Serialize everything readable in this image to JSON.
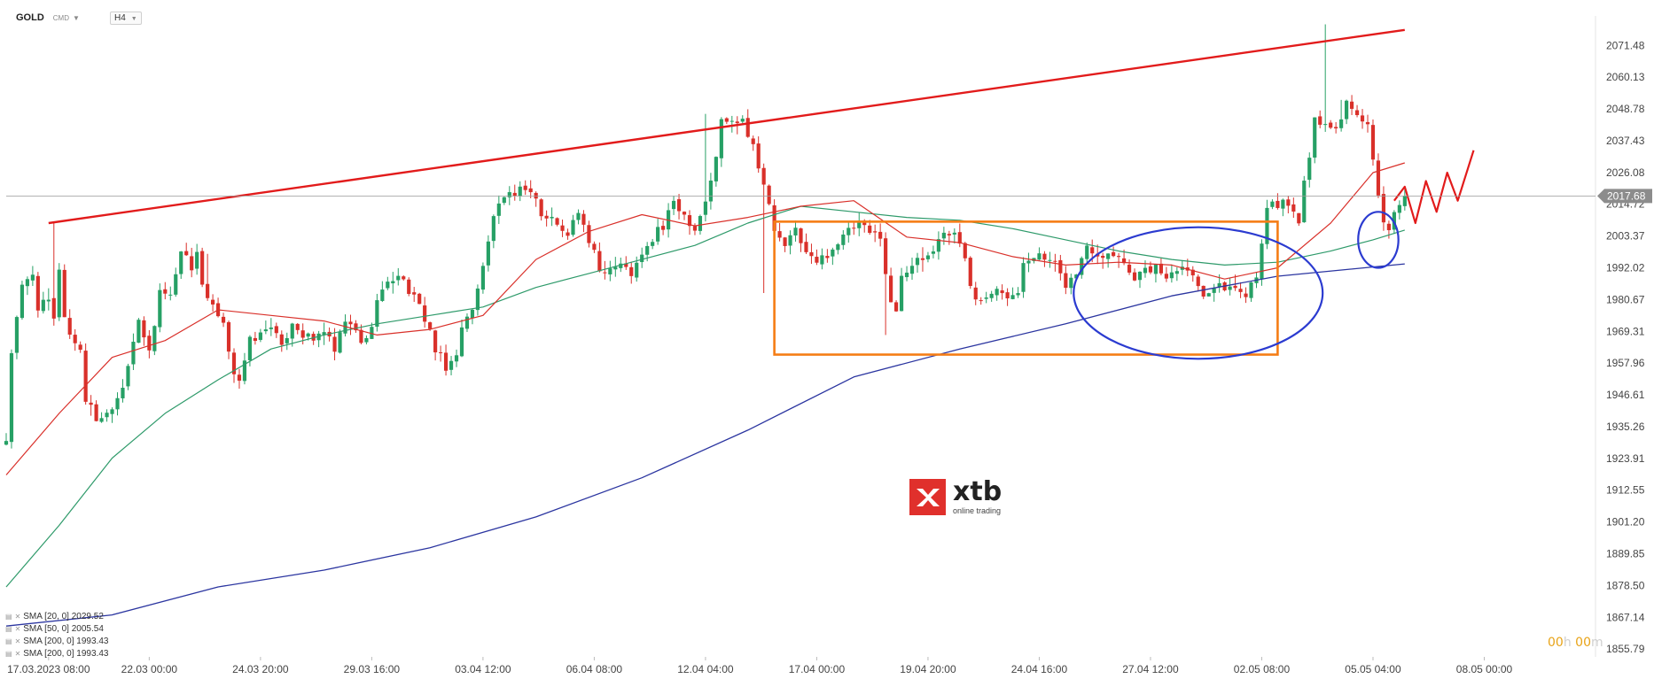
{
  "header": {
    "symbol": "GOLD",
    "type": "CMD",
    "timeframe": "H4"
  },
  "indicators": [
    {
      "label": "SMA [20, 0] 2029.52",
      "color": "#d9302a"
    },
    {
      "label": "SMA [50, 0] 2005.54",
      "color": "#2e9a6a"
    },
    {
      "label": "SMA [200, 0] 1993.43",
      "color": "#2b35a0"
    },
    {
      "label": "SMA [200, 0] 1993.43",
      "color": "#2b35a0"
    }
  ],
  "timer": {
    "hours": "00",
    "h": "h",
    "minutes": "00",
    "m": "m"
  },
  "logo": {
    "word": "xtb",
    "sub": "online trading"
  },
  "colors": {
    "up": "#26a065",
    "down": "#d9302a",
    "trendline": "#e21b1b",
    "range_box": "#f57d15",
    "ellipse": "#2b3bd0",
    "sma20": "#d9302a",
    "sma50": "#2e9a6a",
    "sma200": "#2b35a0",
    "price_tag": "#8c8c8c"
  },
  "chart_data": {
    "type": "candlestick",
    "instrument": "GOLD",
    "timeframe": "H4",
    "ylim": [
      1853.0,
      2082.0
    ],
    "xlim": [
      0,
      300
    ],
    "y_ticks": [
      "2071.48",
      "2060.13",
      "2048.78",
      "2037.43",
      "2026.08",
      "2014.72",
      "2003.37",
      "1992.02",
      "1980.67",
      "1969.31",
      "1957.96",
      "1946.61",
      "1935.26",
      "1923.91",
      "1912.55",
      "1901.20",
      "1889.85",
      "1878.50",
      "1867.14",
      "1855.79"
    ],
    "x_ticks": [
      {
        "label": "17.03.2023   08:00",
        "bar": 8
      },
      {
        "label": "22.03  00:00",
        "bar": 27
      },
      {
        "label": "24.03  20:00",
        "bar": 48
      },
      {
        "label": "29.03  16:00",
        "bar": 69
      },
      {
        "label": "03.04  12:00",
        "bar": 90
      },
      {
        "label": "06.04  08:00",
        "bar": 111
      },
      {
        "label": "12.04  04:00",
        "bar": 132
      },
      {
        "label": "17.04  00:00",
        "bar": 153
      },
      {
        "label": "19.04  20:00",
        "bar": 174
      },
      {
        "label": "24.04  16:00",
        "bar": 195
      },
      {
        "label": "27.04  12:00",
        "bar": 216
      },
      {
        "label": "02.05  08:00",
        "bar": 237
      },
      {
        "label": "05.05  04:00",
        "bar": 258
      },
      {
        "label": "08.05  00:00",
        "bar": 279
      }
    ],
    "last_price": "2017.68",
    "candles": [],
    "ohlc_columns": [
      "open",
      "high",
      "low",
      "close"
    ],
    "anchors": [
      [
        0,
        1930.5
      ],
      [
        1,
        1962
      ],
      [
        3,
        1985
      ],
      [
        5,
        1990
      ],
      [
        6,
        1978
      ],
      [
        8,
        1980
      ],
      [
        9,
        1973
      ],
      [
        10,
        1992
      ],
      [
        11,
        1975
      ],
      [
        12,
        1968
      ],
      [
        14,
        1963
      ],
      [
        15,
        1945
      ],
      [
        16,
        1942
      ],
      [
        17,
        1938
      ],
      [
        19,
        1940
      ],
      [
        21,
        1946
      ],
      [
        22,
        1950
      ],
      [
        24,
        1966
      ],
      [
        25,
        1972
      ],
      [
        27,
        1962
      ],
      [
        28,
        1972
      ],
      [
        29,
        1984
      ],
      [
        31,
        1982
      ],
      [
        33,
        1999
      ],
      [
        35,
        1992
      ],
      [
        36,
        1998
      ],
      [
        37,
        1986
      ],
      [
        38,
        1980
      ],
      [
        39,
        1978
      ],
      [
        40,
        1974
      ],
      [
        41,
        1971
      ],
      [
        42,
        1963
      ],
      [
        43,
        1955
      ],
      [
        44,
        1952
      ],
      [
        45,
        1958
      ],
      [
        46,
        1966
      ],
      [
        48,
        1968
      ],
      [
        50,
        1972
      ],
      [
        52,
        1963
      ],
      [
        54,
        1973
      ],
      [
        56,
        1968
      ],
      [
        58,
        1966
      ],
      [
        60,
        1970
      ],
      [
        62,
        1962
      ],
      [
        64,
        1973
      ],
      [
        66,
        1969
      ],
      [
        67,
        1965
      ],
      [
        69,
        1970
      ],
      [
        70,
        1982
      ],
      [
        72,
        1986
      ],
      [
        74,
        1990
      ],
      [
        76,
        1984
      ],
      [
        78,
        1978
      ],
      [
        80,
        1970
      ],
      [
        81,
        1962
      ],
      [
        82,
        1960
      ],
      [
        83,
        1955
      ],
      [
        85,
        1962
      ],
      [
        86,
        1970
      ],
      [
        88,
        1978
      ],
      [
        90,
        1992
      ],
      [
        91,
        2001
      ],
      [
        92,
        2011
      ],
      [
        94,
        2016
      ],
      [
        96,
        2019
      ],
      [
        98,
        2021
      ],
      [
        100,
        2017
      ],
      [
        101,
        2010
      ],
      [
        103,
        2010
      ],
      [
        104,
        2007
      ],
      [
        106,
        2005
      ],
      [
        108,
        2012
      ],
      [
        110,
        2000
      ],
      [
        111,
        1999
      ],
      [
        112,
        1991
      ],
      [
        114,
        1992
      ],
      [
        116,
        1993
      ],
      [
        118,
        1990
      ],
      [
        120,
        1996
      ],
      [
        122,
        2002
      ],
      [
        123,
        2006
      ],
      [
        124,
        2006
      ],
      [
        126,
        2016
      ],
      [
        128,
        2011
      ],
      [
        130,
        2006
      ],
      [
        132,
        2016
      ],
      [
        134,
        2031
      ],
      [
        135,
        2045
      ],
      [
        137,
        2044
      ],
      [
        139,
        2046
      ],
      [
        140,
        2040
      ],
      [
        141,
        2036
      ],
      [
        143,
        2022
      ],
      [
        144,
        2014
      ],
      [
        145,
        2005
      ],
      [
        146,
        2003
      ],
      [
        147,
        1999
      ],
      [
        149,
        2006
      ],
      [
        150,
        2002
      ],
      [
        151,
        1997
      ],
      [
        153,
        1994
      ],
      [
        155,
        1997
      ],
      [
        157,
        2001
      ],
      [
        159,
        2005
      ],
      [
        161,
        2008
      ],
      [
        163,
        2004
      ],
      [
        165,
        2004
      ],
      [
        166,
        1990
      ],
      [
        167,
        1979
      ],
      [
        168,
        1977
      ],
      [
        169,
        1990
      ],
      [
        171,
        1993
      ],
      [
        173,
        1995
      ],
      [
        175,
        1998
      ],
      [
        176,
        2003
      ],
      [
        177,
        2004
      ],
      [
        179,
        2005
      ],
      [
        180,
        2000
      ],
      [
        181,
        1995
      ],
      [
        182,
        1986
      ],
      [
        183,
        1982
      ],
      [
        185,
        1982
      ],
      [
        187,
        1986
      ],
      [
        189,
        1982
      ],
      [
        191,
        1982
      ],
      [
        192,
        1994
      ],
      [
        194,
        1997
      ],
      [
        196,
        1995
      ],
      [
        198,
        1993
      ],
      [
        199,
        1989
      ],
      [
        200,
        1986
      ],
      [
        202,
        1990
      ],
      [
        204,
        2000
      ],
      [
        206,
        1997
      ],
      [
        208,
        1997
      ],
      [
        210,
        1997
      ],
      [
        211,
        1994
      ],
      [
        212,
        1990
      ],
      [
        213,
        1989
      ],
      [
        215,
        1991
      ],
      [
        217,
        1992
      ],
      [
        219,
        1989
      ],
      [
        221,
        1992
      ],
      [
        222,
        1994
      ],
      [
        224,
        1989
      ],
      [
        226,
        1983
      ],
      [
        228,
        1985
      ],
      [
        230,
        1985
      ],
      [
        232,
        1985
      ],
      [
        233,
        1983
      ],
      [
        234,
        1983
      ],
      [
        235,
        1987
      ],
      [
        236,
        1990
      ],
      [
        237,
        2002
      ],
      [
        238,
        2012
      ],
      [
        239,
        2015
      ],
      [
        240,
        2014
      ],
      [
        241,
        2016
      ],
      [
        243,
        2013
      ],
      [
        244,
        2008
      ],
      [
        245,
        2022
      ],
      [
        246,
        2030
      ],
      [
        247,
        2045
      ],
      [
        248,
        2043
      ],
      [
        250,
        2041
      ],
      [
        252,
        2045
      ],
      [
        253,
        2051
      ],
      [
        255,
        2048
      ],
      [
        257,
        2042
      ],
      [
        258,
        2030
      ],
      [
        259,
        2018
      ],
      [
        260,
        2009
      ],
      [
        261,
        2004
      ],
      [
        262,
        2012
      ],
      [
        263,
        2016
      ],
      [
        264,
        2017.68
      ]
    ],
    "sma20": [
      [
        0,
        1918
      ],
      [
        10,
        1940
      ],
      [
        20,
        1960
      ],
      [
        30,
        1966
      ],
      [
        40,
        1977
      ],
      [
        50,
        1975
      ],
      [
        60,
        1973
      ],
      [
        70,
        1968
      ],
      [
        80,
        1970
      ],
      [
        90,
        1975
      ],
      [
        100,
        1995
      ],
      [
        110,
        2005
      ],
      [
        120,
        2011
      ],
      [
        130,
        2007
      ],
      [
        140,
        2010
      ],
      [
        150,
        2014
      ],
      [
        160,
        2016
      ],
      [
        170,
        2003
      ],
      [
        180,
        2001
      ],
      [
        190,
        1996
      ],
      [
        200,
        1993
      ],
      [
        210,
        1994
      ],
      [
        220,
        1993
      ],
      [
        230,
        1988
      ],
      [
        240,
        1992
      ],
      [
        250,
        2008
      ],
      [
        258,
        2026
      ],
      [
        264,
        2029.5
      ]
    ],
    "sma50": [
      [
        0,
        1878
      ],
      [
        10,
        1900
      ],
      [
        20,
        1924
      ],
      [
        30,
        1940
      ],
      [
        40,
        1952
      ],
      [
        50,
        1963
      ],
      [
        60,
        1968
      ],
      [
        70,
        1972
      ],
      [
        80,
        1975
      ],
      [
        90,
        1978
      ],
      [
        100,
        1985
      ],
      [
        110,
        1990
      ],
      [
        120,
        1995
      ],
      [
        130,
        2000
      ],
      [
        140,
        2008
      ],
      [
        150,
        2014
      ],
      [
        160,
        2012
      ],
      [
        170,
        2010
      ],
      [
        180,
        2009
      ],
      [
        190,
        2006
      ],
      [
        200,
        2002
      ],
      [
        210,
        1998
      ],
      [
        220,
        1995
      ],
      [
        230,
        1993
      ],
      [
        240,
        1994
      ],
      [
        250,
        1998
      ],
      [
        258,
        2002
      ],
      [
        264,
        2005.5
      ]
    ],
    "sma200": [
      [
        0,
        1864
      ],
      [
        20,
        1868
      ],
      [
        40,
        1878
      ],
      [
        60,
        1884
      ],
      [
        80,
        1892
      ],
      [
        100,
        1903
      ],
      [
        120,
        1917
      ],
      [
        140,
        1934
      ],
      [
        160,
        1953
      ],
      [
        180,
        1963
      ],
      [
        200,
        1972
      ],
      [
        220,
        1982
      ],
      [
        240,
        1989
      ],
      [
        264,
        1993.4
      ]
    ],
    "annotations": {
      "trendline": [
        [
          8,
          2008
        ],
        [
          264,
          2077
        ]
      ],
      "range_box": {
        "x0": 145,
        "x1": 240,
        "y_top": 2008.5,
        "y_bottom": 1961
      },
      "ellipse_large": {
        "cx": 225,
        "cy": 1983,
        "rx_bars": 23.5,
        "ry": 23.5
      },
      "ellipse_small": {
        "cx": 259,
        "cy": 2002,
        "rx_bars": 3.8,
        "ry": 10
      },
      "projection": [
        [
          262,
          2016
        ],
        [
          264,
          2021
        ],
        [
          266,
          2008
        ],
        [
          268,
          2023
        ],
        [
          270,
          2012
        ],
        [
          272,
          2026
        ],
        [
          274,
          2016
        ],
        [
          277,
          2034
        ]
      ]
    }
  }
}
